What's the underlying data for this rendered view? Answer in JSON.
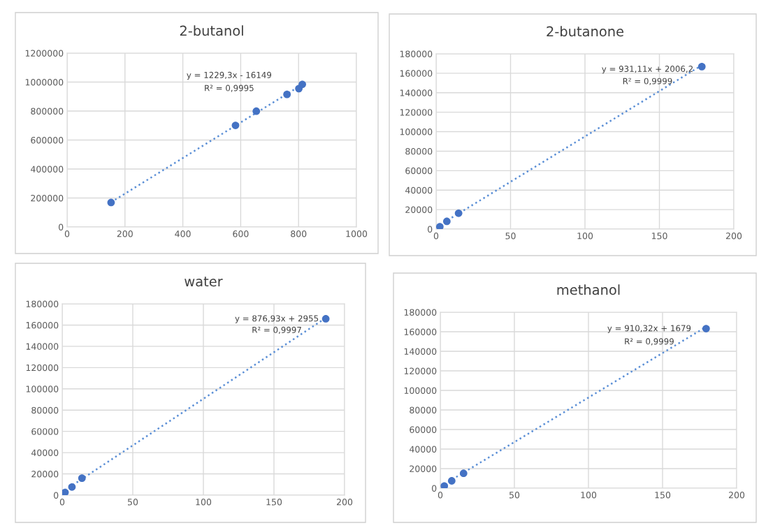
{
  "chart_data": [
    {
      "type": "scatter",
      "title": "2-butanol",
      "xlim": [
        0,
        1000
      ],
      "xticks": [
        0,
        200,
        400,
        600,
        800,
        1000
      ],
      "ylim": [
        0,
        1200000
      ],
      "yticks": [
        0,
        200000,
        400000,
        600000,
        800000,
        1000000,
        1200000
      ],
      "grid": true,
      "series": [
        {
          "color": "#4472c4",
          "marker": "circle",
          "x": [
            152,
            582,
            654,
            760,
            801,
            813
          ],
          "values": [
            169000,
            701000,
            799000,
            915000,
            955000,
            984000
          ]
        },
        {
          "type": "line",
          "color": "#5b8fd6",
          "line_style": "dotted",
          "x": [
            152,
            813
          ],
          "values": [
            171000,
            983000
          ]
        }
      ],
      "annotations": [
        "y = 1229,3x - 16149",
        "R² = 0,9995"
      ]
    },
    {
      "type": "scatter",
      "title": "2-butanone",
      "xlim": [
        0,
        200
      ],
      "xticks": [
        0,
        50,
        100,
        150,
        200
      ],
      "ylim": [
        0,
        180000
      ],
      "yticks": [
        0,
        20000,
        40000,
        60000,
        80000,
        100000,
        120000,
        140000,
        160000,
        180000
      ],
      "grid": true,
      "series": [
        {
          "color": "#4472c4",
          "marker": "circle",
          "x": [
            2.5,
            7.2,
            15.1,
            178.5
          ],
          "values": [
            2400,
            7900,
            16300,
            166800
          ]
        },
        {
          "type": "line",
          "color": "#5b8fd6",
          "line_style": "dotted",
          "x": [
            2.5,
            178.5
          ],
          "values": [
            4300,
            168200
          ]
        }
      ],
      "annotations": [
        "y = 931,11x + 2006,2",
        "R² = 0,9999"
      ]
    },
    {
      "type": "scatter",
      "title": "water",
      "xlim": [
        0,
        200
      ],
      "xticks": [
        0,
        50,
        100,
        150,
        200
      ],
      "ylim": [
        0,
        180000
      ],
      "yticks": [
        0,
        20000,
        40000,
        60000,
        80000,
        100000,
        120000,
        140000,
        160000,
        180000
      ],
      "grid": true,
      "series": [
        {
          "color": "#4472c4",
          "marker": "circle",
          "x": [
            2.0,
            6.9,
            14.0,
            186.7
          ],
          "values": [
            2600,
            7700,
            16000,
            165900
          ]
        },
        {
          "type": "line",
          "color": "#5b8fd6",
          "line_style": "dotted",
          "x": [
            2.0,
            186.7
          ],
          "values": [
            4700,
            166700
          ]
        }
      ],
      "annotations": [
        "y = 876,93x + 2955",
        "R² = 0,9997"
      ]
    },
    {
      "type": "scatter",
      "title": "methanol",
      "xlim": [
        0,
        200
      ],
      "xticks": [
        0,
        50,
        100,
        150,
        200
      ],
      "ylim": [
        0,
        180000
      ],
      "yticks": [
        0,
        20000,
        40000,
        60000,
        80000,
        100000,
        120000,
        140000,
        160000,
        180000
      ],
      "grid": true,
      "series": [
        {
          "color": "#4472c4",
          "marker": "circle",
          "x": [
            2.7,
            7.7,
            15.7,
            179.4
          ],
          "values": [
            2200,
            7500,
            15200,
            163200
          ]
        },
        {
          "type": "line",
          "color": "#5b8fd6",
          "line_style": "dotted",
          "x": [
            2.7,
            179.4
          ],
          "values": [
            4100,
            165000
          ]
        }
      ],
      "annotations": [
        "y = 910,32x + 1679",
        "R² = 0,9999"
      ]
    }
  ]
}
